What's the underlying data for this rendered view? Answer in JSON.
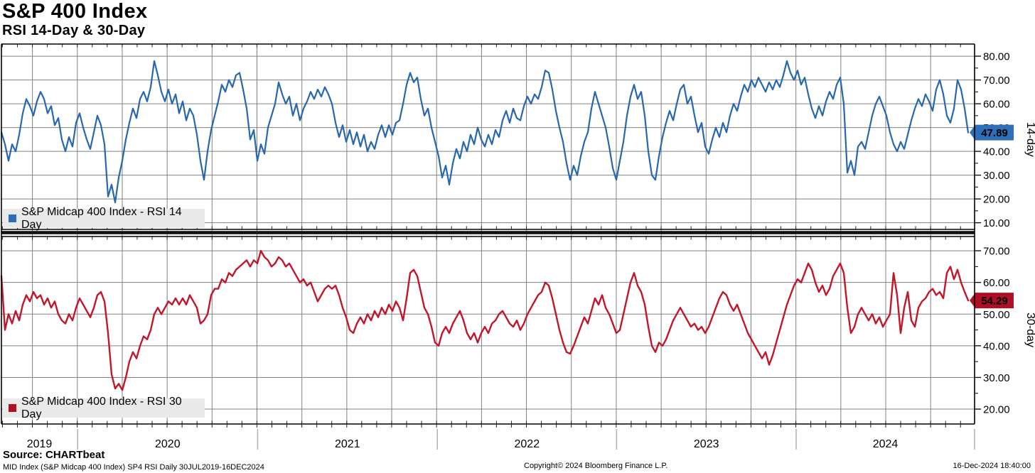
{
  "header": {
    "title": "S&P 400 Index",
    "subtitle": "RSI 14-Day & 30-Day"
  },
  "colors": {
    "rsi14": "#2767AE",
    "rsi14_badge": "#2E6FB7",
    "rsi30": "#C2162B",
    "rsi30_badge": "#AD1126",
    "grid": "#808080",
    "axis": "#000000",
    "legend_bg": "#E9E9E9",
    "year_divider": "#B0B0B0"
  },
  "footer": {
    "source": "Source: CHARTbeat",
    "description": "MID Index (S&P Midcap 400 Index) SP4 RSI  Daily 30JUL2019-16DEC2024",
    "copyright": "Copyright© 2024 Bloomberg Finance L.P.",
    "timestamp": "16-Dec-2024 18:40:00"
  },
  "chart_data": {
    "type": "line",
    "title": "S&P 400 Index - RSI 14-Day & 30-Day",
    "x_axis": {
      "start": "30JUL2019",
      "end": "16DEC2024",
      "years": [
        "2019",
        "2020",
        "2021",
        "2022",
        "2023",
        "2024"
      ],
      "gridlines": "quarterly",
      "ticks": "monthly",
      "sampling": "approx weekly, uniform from 30JUL2019 to 16DEC2024"
    },
    "legend_position": "bottom-left of each panel",
    "grid": true,
    "panels": [
      {
        "name": "RSI 14 Day",
        "legend": "S&P Midcap 400 Index - RSI 14 Day",
        "axis_label": "14-day",
        "last_value": 47.89,
        "color_key": "rsi14",
        "ylim": [
          10,
          80
        ],
        "tick_step": 10,
        "minor_tick_step": 5,
        "values": [
          48,
          43,
          36,
          43,
          40,
          47,
          56,
          62,
          59,
          55,
          61,
          65,
          62,
          56,
          59,
          51,
          54,
          45,
          40,
          46,
          42,
          52,
          56,
          50,
          45,
          41,
          48,
          55,
          51,
          43,
          21,
          26,
          18.5,
          29,
          36,
          45,
          52,
          58,
          54,
          62,
          65,
          61,
          67,
          78,
          72,
          65,
          61,
          66,
          60,
          64,
          56,
          61,
          53,
          58,
          55,
          47,
          36,
          28,
          40,
          49,
          55,
          61,
          68,
          65,
          70,
          67,
          72,
          73,
          66,
          58,
          45,
          49,
          36,
          43,
          39,
          50,
          55,
          60,
          69,
          64,
          60,
          63,
          55,
          60,
          53,
          58,
          61,
          65,
          62,
          66,
          63,
          67,
          64,
          60,
          52,
          46,
          51,
          44,
          49,
          43,
          48,
          42,
          47,
          40,
          44,
          41,
          47,
          51,
          46,
          51,
          47,
          52,
          53,
          60,
          68,
          73,
          69,
          71,
          62,
          55,
          58,
          50,
          44,
          38,
          29,
          34,
          26,
          35,
          41,
          37,
          44,
          40,
          47,
          43,
          50,
          45,
          42,
          47,
          43,
          49,
          46,
          53,
          57,
          52,
          58,
          54,
          53,
          59,
          63,
          60,
          64,
          62,
          67,
          74,
          73,
          66,
          57,
          50,
          44,
          35,
          28,
          34,
          30,
          38,
          44,
          48,
          58,
          65,
          60,
          55,
          50,
          42,
          33,
          28,
          36,
          44,
          55,
          63,
          68,
          62,
          65,
          55,
          40,
          30,
          28,
          38,
          46,
          52,
          57,
          53,
          60,
          66,
          68,
          60,
          63,
          55,
          48,
          52,
          42,
          39,
          45,
          50,
          46,
          52,
          48,
          55,
          60,
          57,
          63,
          68,
          65,
          70,
          67,
          71,
          68,
          65,
          69,
          66,
          70,
          67,
          72,
          78,
          73,
          70,
          74,
          68,
          71,
          64,
          58,
          54,
          59,
          55,
          61,
          65,
          62,
          68,
          71,
          60,
          31,
          36,
          30,
          42,
          44,
          41,
          48,
          55,
          60,
          63,
          59,
          55,
          48,
          43,
          40,
          44,
          41,
          47,
          53,
          58,
          62,
          59,
          64,
          61,
          57,
          66,
          70,
          64,
          55,
          52,
          58,
          70,
          66,
          58,
          47.89
        ]
      },
      {
        "name": "RSI 30 Day",
        "legend": "S&P Midcap 400 Index - RSI 30 Day",
        "axis_label": "30-day",
        "last_value": 54.29,
        "color_key": "rsi30",
        "ylim": [
          20,
          70
        ],
        "tick_step": 10,
        "minor_tick_step": 5,
        "values": [
          62,
          45,
          50,
          47,
          51,
          48,
          53,
          56,
          54,
          57,
          55,
          56,
          53,
          55,
          52,
          54,
          50,
          48,
          47,
          50,
          48,
          52,
          55,
          53,
          51,
          49,
          52,
          56,
          57,
          54,
          44,
          31,
          26.5,
          28,
          26,
          30,
          35,
          38,
          36,
          40,
          43,
          42,
          45,
          50,
          52,
          50,
          52,
          54,
          53,
          55,
          53,
          55,
          53,
          56,
          54,
          52,
          47,
          48,
          50,
          56,
          58,
          58,
          61,
          60,
          63,
          62,
          64,
          65,
          66,
          67,
          65,
          67,
          66,
          70,
          68,
          67,
          65,
          66,
          68,
          67,
          65,
          66,
          64,
          62,
          60,
          61,
          59,
          60,
          57,
          54,
          56,
          58,
          59,
          58,
          59,
          56,
          52,
          49,
          45,
          44,
          47,
          49,
          47,
          50,
          48,
          51,
          49,
          52,
          50,
          53,
          51,
          54,
          52,
          48,
          55,
          63,
          64,
          62,
          57,
          52,
          50,
          46,
          41,
          40,
          44,
          46,
          44,
          47,
          49,
          51,
          48,
          44,
          42,
          44,
          41,
          44,
          46,
          44,
          47,
          48,
          50,
          51,
          49,
          47,
          46,
          48,
          45,
          47,
          50,
          52,
          54,
          56,
          57,
          60,
          59,
          55,
          50,
          45,
          41,
          38,
          37.5,
          40,
          43,
          46,
          49,
          47,
          51,
          55,
          53,
          56,
          52,
          50,
          47,
          44,
          45,
          50,
          55,
          60,
          63,
          59,
          57,
          53,
          46,
          40,
          38,
          41,
          40,
          42,
          45,
          48,
          50,
          52,
          50,
          48,
          46,
          47,
          45,
          46,
          44,
          46,
          49,
          52,
          55,
          57,
          56,
          53,
          51,
          53,
          50,
          47,
          44,
          42,
          40,
          38,
          36,
          38,
          34,
          37,
          41,
          45,
          49,
          53,
          56,
          59,
          61,
          60,
          63,
          66,
          64,
          60,
          57,
          59,
          56,
          58,
          62,
          64,
          66,
          63,
          52,
          44,
          46,
          50,
          52,
          50,
          48,
          50,
          47,
          49,
          46,
          48,
          50,
          63,
          56,
          44,
          52,
          57,
          48,
          46,
          52,
          54,
          55,
          57,
          58,
          56,
          57,
          55,
          63,
          65,
          61,
          64,
          60,
          57,
          54.29
        ]
      }
    ]
  }
}
